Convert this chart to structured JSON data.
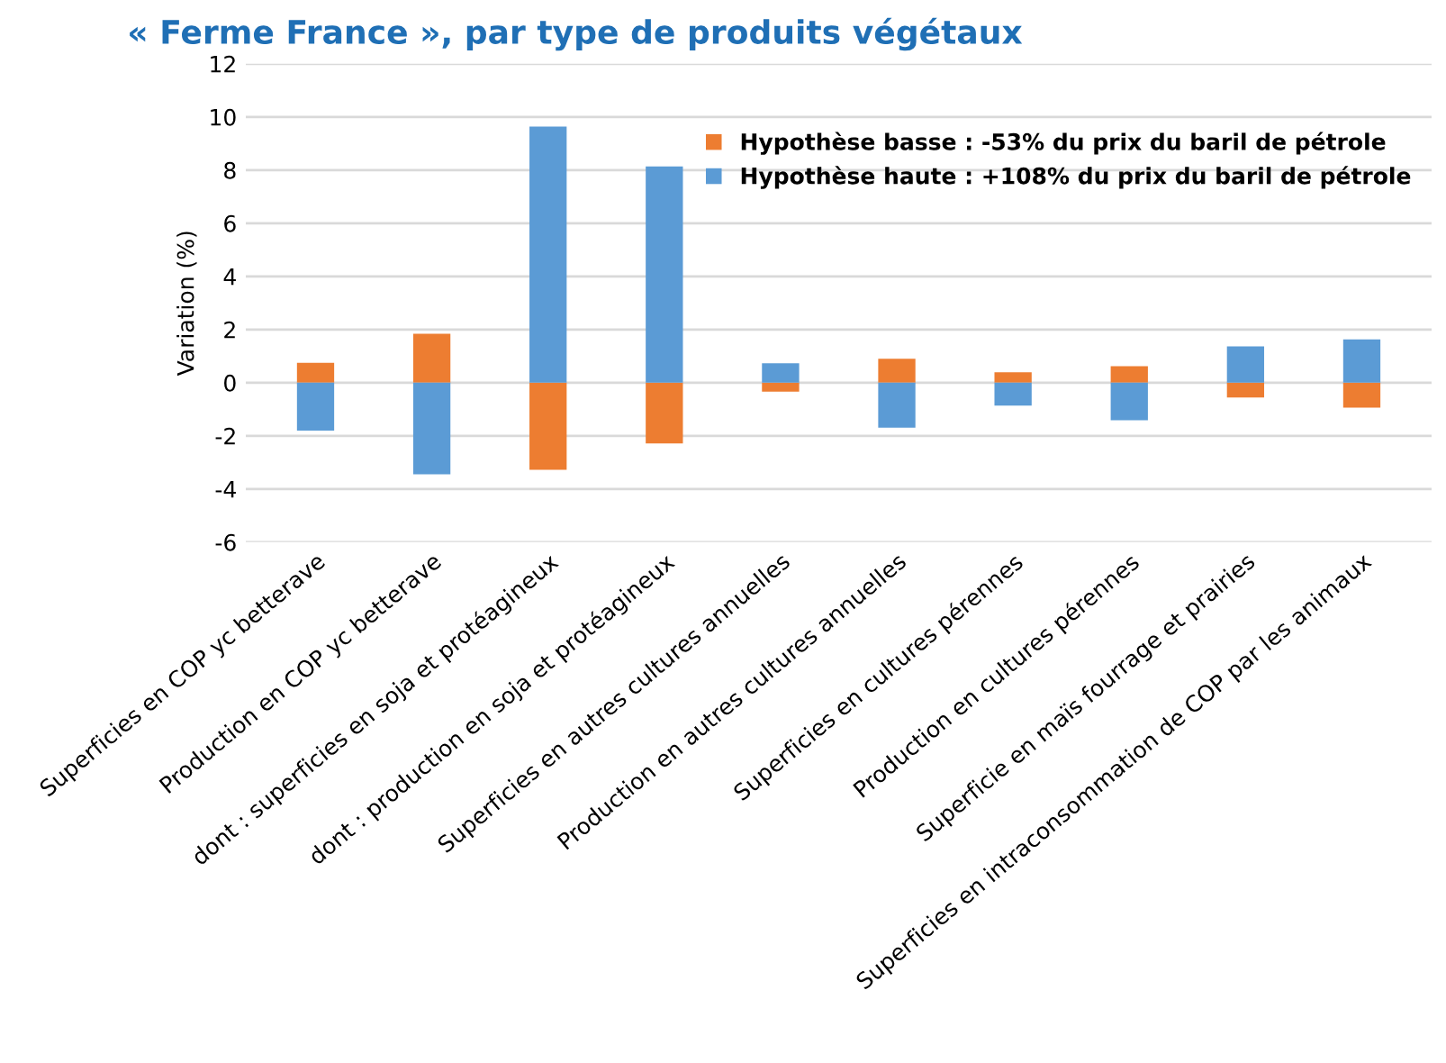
{
  "chart_data": {
    "type": "bar",
    "title": "« Ferme France », par type de produits végétaux",
    "ylabel": "Variation (%)",
    "categories": [
      "Superficies en COP yc betterave",
      "Production en COP yc betterave",
      "dont : superficies en soja et protéagineux",
      "dont : production en soja et protéagineux",
      "Superficies en autres cultures annuelles",
      "Production en autres cultures annuelles",
      "Superficies en cultures pérennes",
      "Production en cultures pérennes",
      "Superficie en maïs fourrage et prairies",
      "Superficies en intraconsommation de COP par les animaux"
    ],
    "series": [
      {
        "name": "Hypothèse basse : -53% du prix du baril de pétrole",
        "color": "#ed7d31",
        "values": [
          0.75,
          1.84,
          -3.28,
          -2.29,
          -0.34,
          0.9,
          0.39,
          0.62,
          -0.56,
          -0.94
        ]
      },
      {
        "name": "Hypothèse haute : +108% du prix du baril de pétrole",
        "color": "#5b9bd5",
        "values": [
          -1.8,
          -3.45,
          9.64,
          8.14,
          0.73,
          -1.69,
          -0.86,
          -1.41,
          1.37,
          1.63
        ]
      }
    ],
    "stacked": true,
    "ylim": [
      -6,
      12
    ],
    "yticks": [
      -6,
      -4,
      -2,
      0,
      2,
      4,
      6,
      8,
      10,
      12
    ],
    "grid": "y",
    "legend": "top right"
  }
}
